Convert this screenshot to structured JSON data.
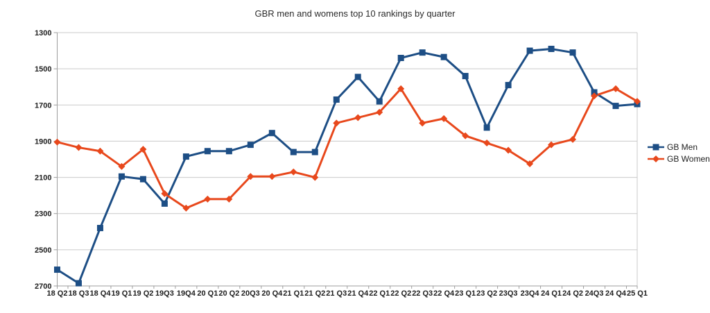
{
  "chart_data": {
    "type": "line",
    "title": "GBR men and womens top 10 rankings by quarter",
    "categories": [
      "18 Q2",
      "18 Q3",
      "18 Q4",
      "19 Q1",
      "19 Q2",
      "19Q3",
      "19Q4",
      "20 Q1",
      "20 Q2",
      "20Q3",
      "20 Q4",
      "21 Q1",
      "21 Q2",
      "21 Q3",
      "21 Q4",
      "22 Q1",
      "22 Q2",
      "22 Q3",
      "22 Q4",
      "23 Q1",
      "23 Q2",
      "23Q3",
      "23Q4",
      "24 Q1",
      "24 Q2",
      "24Q3",
      "24 Q4",
      "25 Q1"
    ],
    "series": [
      {
        "name": "GB Men",
        "color": "#1d4e85",
        "marker": "square",
        "values": [
          2610,
          2685,
          2380,
          2095,
          2110,
          2245,
          1985,
          1955,
          1955,
          1920,
          1855,
          1960,
          1960,
          1670,
          1545,
          1680,
          1440,
          1410,
          1435,
          1540,
          1825,
          1590,
          1400,
          1390,
          1410,
          1630,
          1705,
          1695
        ]
      },
      {
        "name": "GB Women",
        "color": "#e8481c",
        "marker": "diamond",
        "values": [
          1905,
          1935,
          1955,
          2040,
          1945,
          2190,
          2270,
          2220,
          2220,
          2095,
          2095,
          2070,
          2100,
          1800,
          1770,
          1740,
          1610,
          1800,
          1775,
          1870,
          1910,
          1950,
          2025,
          1920,
          1890,
          1650,
          1610,
          1680
        ]
      }
    ],
    "xlabel": "",
    "ylabel": "",
    "y_ticks": [
      1300,
      1500,
      1700,
      1900,
      2100,
      2300,
      2500,
      2700
    ],
    "ylim": [
      1300,
      2700
    ],
    "y_axis_inverted": true,
    "grid": "horizontal",
    "legend_position": "right"
  },
  "colors": {
    "gridline": "#c9c9c9",
    "axis": "#9c9c9c",
    "background": "#ffffff"
  }
}
